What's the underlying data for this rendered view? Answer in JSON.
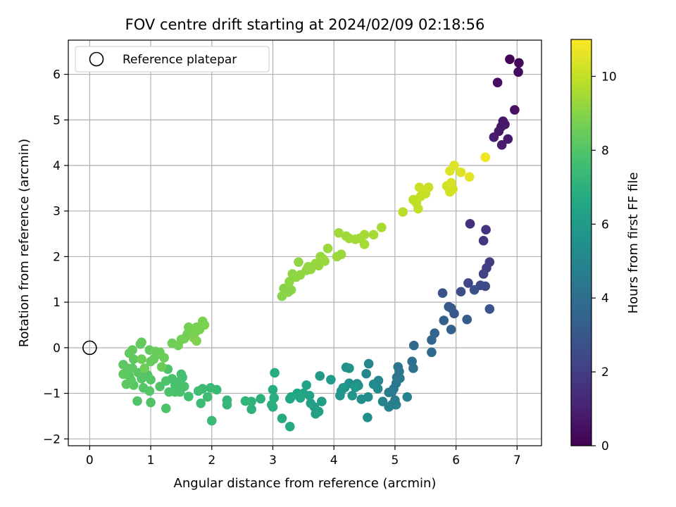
{
  "chart_data": {
    "type": "scatter",
    "title": "FOV centre drift starting at 2024/02/09 02:18:56",
    "xlabel": "Angular distance from reference (arcmin)",
    "ylabel": "Rotation from reference (arcmin)",
    "xlim": [
      -0.35,
      7.4
    ],
    "ylim": [
      -2.15,
      6.75
    ],
    "xticks": [
      "0",
      "1",
      "2",
      "3",
      "4",
      "5",
      "6",
      "7"
    ],
    "yticks": [
      "−2",
      "−1",
      "0",
      "1",
      "2",
      "3",
      "4",
      "5",
      "6"
    ],
    "grid": true,
    "legend": {
      "position": "top-left",
      "entries": [
        "Reference platepar"
      ]
    },
    "reference_point": {
      "x": 0,
      "y": 0
    },
    "colorbar": {
      "label": "Hours from first FF file",
      "colormap": "viridis",
      "range": [
        0,
        11
      ],
      "ticks": [
        "0",
        "2",
        "4",
        "6",
        "8",
        "10"
      ]
    },
    "points": [
      [
        6.88,
        6.33,
        0.1
      ],
      [
        7.03,
        6.25,
        0.2
      ],
      [
        7.02,
        6.05,
        0.3
      ],
      [
        6.68,
        5.82,
        0.4
      ],
      [
        6.96,
        5.22,
        0.5
      ],
      [
        6.77,
        4.97,
        0.6
      ],
      [
        6.74,
        4.85,
        0.65
      ],
      [
        6.8,
        4.9,
        0.7
      ],
      [
        6.7,
        4.75,
        0.75
      ],
      [
        6.85,
        4.58,
        0.8
      ],
      [
        6.62,
        4.62,
        0.85
      ],
      [
        6.75,
        4.45,
        0.9
      ],
      [
        6.23,
        2.72,
        1.5
      ],
      [
        6.49,
        2.59,
        1.6
      ],
      [
        6.45,
        2.35,
        1.7
      ],
      [
        6.55,
        1.88,
        1.9
      ],
      [
        6.5,
        1.75,
        2.0
      ],
      [
        6.45,
        1.62,
        2.1
      ],
      [
        6.2,
        1.42,
        2.3
      ],
      [
        6.4,
        1.37,
        2.4
      ],
      [
        6.48,
        1.35,
        2.5
      ],
      [
        6.08,
        1.23,
        2.6
      ],
      [
        6.3,
        1.27,
        2.7
      ],
      [
        5.78,
        1.2,
        2.8
      ],
      [
        6.55,
        0.85,
        2.9
      ],
      [
        5.92,
        0.87,
        3.0
      ],
      [
        5.88,
        0.9,
        3.05
      ],
      [
        5.97,
        0.75,
        3.1
      ],
      [
        6.18,
        0.62,
        3.2
      ],
      [
        5.8,
        0.6,
        3.3
      ],
      [
        5.92,
        0.4,
        3.4
      ],
      [
        5.65,
        0.32,
        3.5
      ],
      [
        5.6,
        0.17,
        3.6
      ],
      [
        5.31,
        0.05,
        3.7
      ],
      [
        5.6,
        -0.1,
        3.8
      ],
      [
        5.28,
        -0.3,
        4.0
      ],
      [
        5.3,
        -0.45,
        4.1
      ],
      [
        5.05,
        -0.42,
        4.2
      ],
      [
        5.07,
        -0.52,
        4.25
      ],
      [
        5.03,
        -0.65,
        4.3
      ],
      [
        5.08,
        -0.67,
        4.35
      ],
      [
        5.02,
        -0.78,
        4.4
      ],
      [
        4.98,
        -0.9,
        4.45
      ],
      [
        4.95,
        -0.97,
        4.5
      ],
      [
        4.9,
        -0.98,
        4.55
      ],
      [
        5.0,
        -1.15,
        4.6
      ],
      [
        4.95,
        -1.25,
        4.65
      ],
      [
        5.02,
        -1.25,
        4.7
      ],
      [
        4.9,
        -1.3,
        4.75
      ],
      [
        5.2,
        -1.08,
        4.8
      ],
      [
        4.8,
        -1.18,
        4.85
      ],
      [
        4.57,
        -0.35,
        5.0
      ],
      [
        4.53,
        -0.57,
        5.05
      ],
      [
        4.73,
        -0.72,
        5.1
      ],
      [
        4.72,
        -0.9,
        5.15
      ],
      [
        4.65,
        -0.8,
        5.2
      ],
      [
        4.56,
        -1.08,
        5.25
      ],
      [
        4.45,
        -1.13,
        5.3
      ],
      [
        4.55,
        -1.53,
        5.35
      ],
      [
        4.38,
        -0.79,
        5.4
      ],
      [
        4.4,
        -0.83,
        5.45
      ],
      [
        4.25,
        -0.78,
        5.5
      ],
      [
        4.2,
        -0.43,
        5.55
      ],
      [
        4.25,
        -0.45,
        5.6
      ],
      [
        4.18,
        -0.87,
        5.65
      ],
      [
        4.12,
        -0.95,
        5.7
      ],
      [
        4.1,
        -1.05,
        5.75
      ],
      [
        4.3,
        -1.05,
        5.8
      ],
      [
        4.15,
        -0.88,
        5.85
      ],
      [
        4.35,
        -0.87,
        5.9
      ],
      [
        3.95,
        -0.7,
        5.95
      ],
      [
        3.77,
        -0.62,
        6.0
      ],
      [
        3.8,
        -1.18,
        6.05
      ],
      [
        3.75,
        -1.4,
        6.1
      ],
      [
        3.7,
        -1.45,
        6.15
      ],
      [
        3.68,
        -1.3,
        6.2
      ],
      [
        3.62,
        -1.22,
        6.25
      ],
      [
        3.6,
        -1.05,
        6.3
      ],
      [
        3.55,
        -0.82,
        6.35
      ],
      [
        3.5,
        -1.0,
        6.4
      ],
      [
        3.4,
        -1.0,
        6.45
      ],
      [
        3.45,
        -1.1,
        6.5
      ],
      [
        3.3,
        -1.08,
        6.55
      ],
      [
        3.28,
        -1.12,
        6.6
      ],
      [
        3.28,
        -1.73,
        6.65
      ],
      [
        3.15,
        -1.55,
        6.7
      ],
      [
        3.03,
        -0.55,
        6.75
      ],
      [
        3.0,
        -0.92,
        6.8
      ],
      [
        3.0,
        -1.3,
        6.85
      ],
      [
        3.02,
        -1.1,
        6.9
      ],
      [
        2.98,
        -1.25,
        6.95
      ],
      [
        2.8,
        -1.12,
        7.0
      ],
      [
        2.65,
        -1.35,
        7.05
      ],
      [
        2.65,
        -1.18,
        7.1
      ],
      [
        2.55,
        -1.17,
        7.15
      ],
      [
        2.25,
        -1.15,
        7.2
      ],
      [
        2.25,
        -1.25,
        7.25
      ],
      [
        2.08,
        -0.92,
        7.3
      ],
      [
        2.0,
        -1.6,
        7.35
      ],
      [
        1.98,
        -0.88,
        7.4
      ],
      [
        1.85,
        -0.9,
        7.45
      ],
      [
        1.93,
        -1.08,
        7.5
      ],
      [
        1.82,
        -1.22,
        7.55
      ],
      [
        1.78,
        -0.95,
        7.6
      ],
      [
        1.62,
        -1.07,
        7.65
      ],
      [
        1.52,
        -0.65,
        7.7
      ],
      [
        1.5,
        -0.58,
        7.72
      ],
      [
        1.45,
        -0.75,
        7.74
      ],
      [
        1.4,
        -0.82,
        7.76
      ],
      [
        1.35,
        -0.68,
        7.78
      ],
      [
        1.55,
        -0.85,
        7.8
      ],
      [
        1.48,
        -0.97,
        7.82
      ],
      [
        1.4,
        -0.97,
        7.84
      ],
      [
        1.3,
        -0.97,
        7.86
      ],
      [
        1.25,
        -0.73,
        7.88
      ],
      [
        1.28,
        -0.47,
        7.9
      ],
      [
        1.25,
        -1.33,
        7.92
      ],
      [
        1.15,
        -0.85,
        7.94
      ],
      [
        1.0,
        -1.2,
        7.96
      ],
      [
        0.78,
        -1.17,
        7.98
      ],
      [
        0.88,
        -0.88,
        8.0
      ],
      [
        0.95,
        -0.6,
        8.02
      ],
      [
        1.0,
        -0.7,
        8.04
      ],
      [
        0.98,
        -0.95,
        8.06
      ],
      [
        0.85,
        -0.68,
        8.08
      ],
      [
        0.8,
        -0.55,
        8.1
      ],
      [
        0.72,
        -0.82,
        8.12
      ],
      [
        0.68,
        -0.72,
        8.14
      ],
      [
        0.65,
        -0.62,
        8.16
      ],
      [
        0.62,
        -0.45,
        8.18
      ],
      [
        0.55,
        -0.37,
        8.2
      ],
      [
        0.55,
        -0.58,
        8.22
      ],
      [
        0.6,
        -0.8,
        8.24
      ],
      [
        0.7,
        -0.45,
        8.26
      ],
      [
        0.72,
        -0.25,
        8.28
      ],
      [
        0.65,
        -0.12,
        8.3
      ],
      [
        0.7,
        -0.05,
        8.32
      ],
      [
        0.83,
        0.08,
        8.34
      ],
      [
        0.85,
        0.12,
        8.36
      ],
      [
        0.98,
        -0.05,
        8.38
      ],
      [
        1.0,
        -0.3,
        8.4
      ],
      [
        1.05,
        -0.25,
        8.42
      ],
      [
        1.1,
        -0.15,
        8.44
      ],
      [
        1.08,
        -0.08,
        8.46
      ],
      [
        1.15,
        -0.1,
        8.48
      ],
      [
        1.18,
        -0.42,
        8.5
      ],
      [
        1.22,
        -0.22,
        8.52
      ],
      [
        0.9,
        -0.45,
        8.54
      ],
      [
        0.85,
        -0.25,
        8.56
      ],
      [
        1.35,
        0.1,
        8.6
      ],
      [
        1.45,
        0.05,
        8.62
      ],
      [
        1.5,
        0.18,
        8.64
      ],
      [
        1.55,
        0.2,
        8.66
      ],
      [
        1.6,
        0.3,
        8.68
      ],
      [
        1.62,
        0.45,
        8.7
      ],
      [
        1.68,
        0.4,
        8.72
      ],
      [
        1.72,
        0.32,
        8.74
      ],
      [
        1.75,
        0.45,
        8.76
      ],
      [
        1.8,
        0.4,
        8.78
      ],
      [
        1.85,
        0.58,
        8.8
      ],
      [
        1.88,
        0.5,
        8.82
      ],
      [
        1.7,
        0.22,
        8.84
      ],
      [
        1.75,
        0.15,
        8.86
      ],
      [
        3.15,
        1.13,
        9.0
      ],
      [
        3.18,
        1.3,
        9.02
      ],
      [
        3.25,
        1.22,
        9.04
      ],
      [
        3.3,
        1.27,
        9.06
      ],
      [
        3.27,
        1.45,
        9.08
      ],
      [
        3.32,
        1.62,
        9.1
      ],
      [
        3.38,
        1.55,
        9.12
      ],
      [
        3.42,
        1.88,
        9.14
      ],
      [
        3.45,
        1.6,
        9.16
      ],
      [
        3.55,
        1.7,
        9.18
      ],
      [
        3.58,
        1.78,
        9.2
      ],
      [
        3.62,
        1.72,
        9.22
      ],
      [
        3.7,
        1.85,
        9.24
      ],
      [
        3.75,
        1.8,
        9.26
      ],
      [
        3.78,
        2.0,
        9.28
      ],
      [
        3.82,
        1.95,
        9.3
      ],
      [
        3.85,
        1.9,
        9.32
      ],
      [
        3.9,
        2.18,
        9.34
      ],
      [
        4.05,
        2.0,
        9.36
      ],
      [
        4.12,
        2.05,
        9.38
      ],
      [
        4.08,
        2.52,
        9.4
      ],
      [
        4.2,
        2.45,
        9.42
      ],
      [
        4.25,
        2.4,
        9.44
      ],
      [
        4.35,
        2.38,
        9.46
      ],
      [
        4.42,
        2.4,
        9.48
      ],
      [
        4.5,
        2.48,
        9.5
      ],
      [
        4.5,
        2.27,
        9.52
      ],
      [
        4.65,
        2.48,
        9.54
      ],
      [
        4.78,
        2.64,
        9.56
      ],
      [
        5.13,
        2.98,
        9.8
      ],
      [
        5.3,
        3.25,
        9.85
      ],
      [
        5.35,
        3.18,
        9.9
      ],
      [
        5.38,
        3.05,
        9.95
      ],
      [
        5.42,
        3.32,
        10.0
      ],
      [
        5.5,
        3.38,
        10.05
      ],
      [
        5.55,
        3.52,
        10.1
      ],
      [
        5.4,
        3.52,
        10.15
      ],
      [
        5.85,
        3.55,
        10.2
      ],
      [
        5.9,
        3.42,
        10.25
      ],
      [
        5.95,
        3.48,
        10.3
      ],
      [
        5.92,
        3.62,
        10.35
      ],
      [
        5.9,
        3.88,
        10.4
      ],
      [
        5.97,
        4.0,
        10.45
      ],
      [
        6.08,
        3.85,
        10.5
      ],
      [
        6.22,
        3.75,
        10.55
      ],
      [
        6.48,
        4.18,
        10.8
      ]
    ]
  }
}
